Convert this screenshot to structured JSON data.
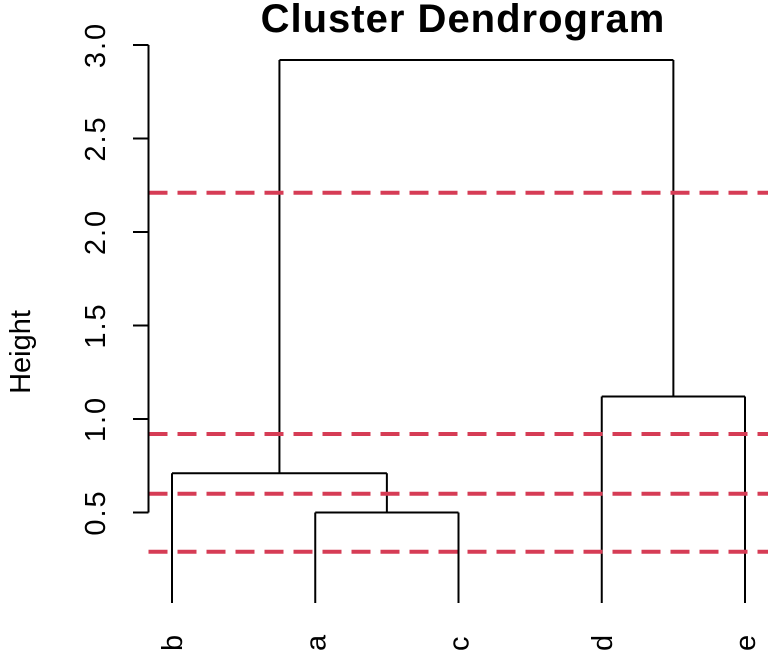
{
  "chart_data": {
    "type": "dendrogram",
    "title": "Cluster Dendrogram",
    "ylabel": "Height",
    "xlabel": "",
    "ylim": [
      0,
      3
    ],
    "yticks": [
      0.5,
      1.0,
      1.5,
      2.0,
      2.5,
      3.0
    ],
    "ytick_labels": [
      "0.5",
      "1.0",
      "1.5",
      "2.0",
      "2.5",
      "3.0"
    ],
    "grid": false,
    "legend": false,
    "leaves": [
      "b",
      "a",
      "c",
      "d",
      "e"
    ],
    "merges": [
      {
        "id": "ac",
        "children": [
          "a",
          "c"
        ],
        "height": 0.5
      },
      {
        "id": "b_ac",
        "children": [
          "b",
          "ac"
        ],
        "height": 0.71
      },
      {
        "id": "de",
        "children": [
          "d",
          "e"
        ],
        "height": 1.12
      },
      {
        "id": "root",
        "children": [
          "b_ac",
          "de"
        ],
        "height": 2.92
      }
    ],
    "cut_lines": {
      "heights": [
        2.21,
        0.92,
        0.6,
        0.29
      ],
      "style": "dashed",
      "color": "#D63C55"
    },
    "line_color": "#000000",
    "background_color": "#FFFFFF"
  }
}
